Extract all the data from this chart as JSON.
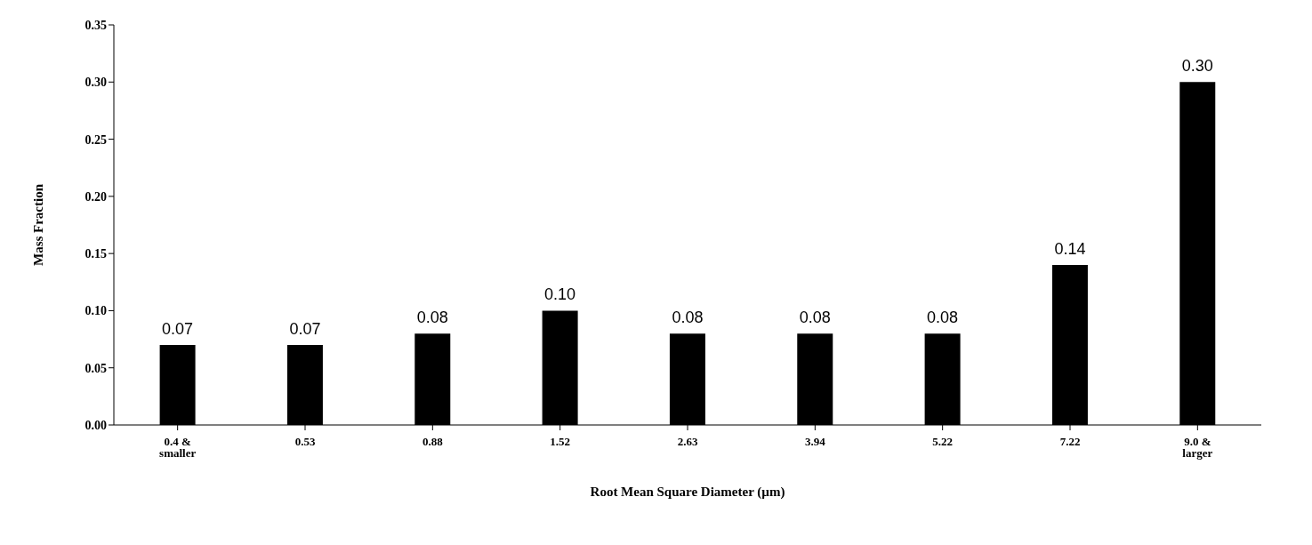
{
  "chart_data": {
    "type": "bar",
    "xlabel": "Root Mean Square Diameter (µm)",
    "ylabel": "Mass Fraction",
    "categories": [
      "0.4 & smaller",
      "0.53",
      "0.88",
      "1.52",
      "2.63",
      "3.94",
      "5.22",
      "7.22",
      "9.0 & larger"
    ],
    "values": [
      0.07,
      0.07,
      0.08,
      0.1,
      0.08,
      0.08,
      0.08,
      0.14,
      0.3
    ],
    "value_labels": [
      "0.07",
      "0.07",
      "0.08",
      "0.10",
      "0.08",
      "0.08",
      "0.08",
      "0.14",
      "0.30"
    ],
    "color": "#000000",
    "ylim": [
      0,
      0.35
    ],
    "yticks": [
      {
        "value": 0,
        "label": "0.00"
      },
      {
        "value": 0.05,
        "label": "0.05"
      },
      {
        "value": 0.1,
        "label": "0.10"
      },
      {
        "value": 0.15,
        "label": "0.15"
      },
      {
        "value": 0.2,
        "label": "0.20"
      },
      {
        "value": 0.25,
        "label": "0.25"
      },
      {
        "value": 0.3,
        "label": "0.30"
      },
      {
        "value": 0.35,
        "label": "0.35"
      }
    ],
    "grid": false,
    "legend": false
  }
}
